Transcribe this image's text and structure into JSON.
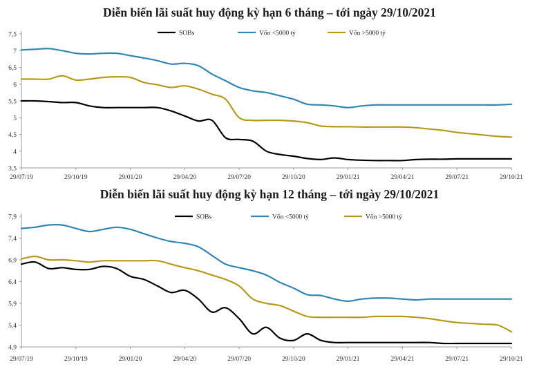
{
  "chart_data": [
    {
      "type": "line",
      "title": "Diễn biến lãi suất huy động kỳ hạn 6 tháng – tới ngày 29/10/2021",
      "xlabel": "",
      "ylabel": "",
      "ylim": [
        3.5,
        7.5
      ],
      "yticks": [
        "7,5",
        "7",
        "6,5",
        "6",
        "5,5",
        "5",
        "4,5",
        "4",
        "3,5"
      ],
      "ytick_values": [
        7.5,
        7,
        6.5,
        6,
        5.5,
        5,
        4.5,
        4,
        3.5
      ],
      "x_ticks": [
        "29/07/19",
        "29/10/19",
        "29/01/20",
        "29/04/20",
        "29/07/20",
        "29/10/20",
        "29/01/21",
        "29/04/21",
        "29/07/21",
        "29/10/21"
      ],
      "x": [
        0,
        0.25,
        0.5,
        0.75,
        1,
        1.25,
        1.5,
        1.75,
        2,
        2.25,
        2.5,
        2.75,
        3,
        3.25,
        3.5,
        3.75,
        4,
        4.25,
        4.5,
        4.75,
        5,
        5.25,
        5.5,
        5.75,
        6,
        6.25,
        6.5,
        6.75,
        7,
        7.25,
        7.5,
        7.75,
        8,
        8.25,
        8.5,
        8.75,
        9
      ],
      "legend_position": "top-center",
      "series": [
        {
          "name": "SOBs",
          "color": "#000000",
          "values": [
            5.5,
            5.5,
            5.48,
            5.45,
            5.45,
            5.35,
            5.3,
            5.3,
            5.3,
            5.3,
            5.3,
            5.2,
            5.05,
            4.9,
            4.92,
            4.4,
            4.35,
            4.3,
            4.0,
            3.9,
            3.85,
            3.78,
            3.75,
            3.8,
            3.75,
            3.73,
            3.72,
            3.72,
            3.72,
            3.75,
            3.76,
            3.76,
            3.77,
            3.77,
            3.77,
            3.77,
            3.77
          ]
        },
        {
          "name": "Vốn <5000 tỷ",
          "color": "#2e86b4",
          "values": [
            7.02,
            7.04,
            7.06,
            7.0,
            6.92,
            6.9,
            6.92,
            6.92,
            6.85,
            6.78,
            6.7,
            6.6,
            6.62,
            6.55,
            6.3,
            6.1,
            5.9,
            5.8,
            5.75,
            5.65,
            5.55,
            5.4,
            5.38,
            5.35,
            5.3,
            5.35,
            5.38,
            5.38,
            5.38,
            5.38,
            5.38,
            5.38,
            5.38,
            5.38,
            5.38,
            5.38,
            5.4
          ]
        },
        {
          "name": "Vốn >5000 tỷ",
          "color": "#b59a19",
          "values": [
            6.15,
            6.15,
            6.15,
            6.25,
            6.12,
            6.15,
            6.2,
            6.22,
            6.2,
            6.05,
            5.98,
            5.9,
            5.95,
            5.85,
            5.7,
            5.55,
            5.0,
            4.92,
            4.92,
            4.92,
            4.9,
            4.85,
            4.75,
            4.73,
            4.73,
            4.72,
            4.72,
            4.72,
            4.72,
            4.7,
            4.66,
            4.62,
            4.56,
            4.52,
            4.48,
            4.44,
            4.42
          ]
        }
      ]
    },
    {
      "type": "line",
      "title": "Diễn biến lãi suất huy động kỳ hạn 12 tháng – tới ngày 29/10/2021",
      "xlabel": "",
      "ylabel": "",
      "ylim": [
        4.9,
        7.9
      ],
      "yticks": [
        "7,9",
        "7,4",
        "6,9",
        "6,4",
        "5,9",
        "5,4",
        "4,9"
      ],
      "ytick_values": [
        7.9,
        7.4,
        6.9,
        6.4,
        5.9,
        5.4,
        4.9
      ],
      "x_ticks": [
        "29/07/19",
        "29/10/19",
        "29/01/20",
        "29/04/20",
        "29/07/20",
        "29/10/20",
        "29/01/21",
        "29/04/21",
        "29/07/21",
        "29/10/21"
      ],
      "x": [
        0,
        0.25,
        0.5,
        0.75,
        1,
        1.25,
        1.5,
        1.75,
        2,
        2.25,
        2.5,
        2.75,
        3,
        3.25,
        3.5,
        3.75,
        4,
        4.25,
        4.5,
        4.75,
        5,
        5.25,
        5.5,
        5.75,
        6,
        6.25,
        6.5,
        6.75,
        7,
        7.25,
        7.5,
        7.75,
        8,
        8.25,
        8.5,
        8.75,
        9
      ],
      "legend_position": "top-center",
      "series": [
        {
          "name": "SOBs",
          "color": "#000000",
          "values": [
            6.8,
            6.85,
            6.7,
            6.72,
            6.68,
            6.68,
            6.75,
            6.7,
            6.52,
            6.45,
            6.3,
            6.15,
            6.2,
            6.0,
            5.7,
            5.8,
            5.55,
            5.2,
            5.35,
            5.1,
            5.05,
            5.2,
            5.05,
            5.0,
            5.0,
            5.0,
            5.0,
            5.0,
            5.0,
            5.0,
            5.0,
            4.98,
            4.98,
            4.98,
            4.98,
            4.98,
            4.98
          ]
        },
        {
          "name": "Vốn <5000 tỷ",
          "color": "#2e86b4",
          "values": [
            7.62,
            7.65,
            7.7,
            7.7,
            7.62,
            7.55,
            7.6,
            7.65,
            7.6,
            7.5,
            7.4,
            7.32,
            7.28,
            7.2,
            7.0,
            6.8,
            6.72,
            6.65,
            6.55,
            6.38,
            6.25,
            6.1,
            6.08,
            6.0,
            5.95,
            6.0,
            6.02,
            6.02,
            6.0,
            5.98,
            6.0,
            6.0,
            6.0,
            6.0,
            6.0,
            6.0,
            6.0
          ]
        },
        {
          "name": "Vốn >5000 tỷ",
          "color": "#b59a19",
          "values": [
            6.92,
            6.98,
            6.9,
            6.9,
            6.88,
            6.85,
            6.88,
            6.88,
            6.88,
            6.88,
            6.88,
            6.8,
            6.72,
            6.65,
            6.55,
            6.45,
            6.3,
            6.0,
            5.9,
            5.85,
            5.72,
            5.6,
            5.58,
            5.58,
            5.58,
            5.58,
            5.6,
            5.6,
            5.6,
            5.58,
            5.55,
            5.5,
            5.46,
            5.44,
            5.42,
            5.4,
            5.25
          ]
        }
      ]
    }
  ]
}
